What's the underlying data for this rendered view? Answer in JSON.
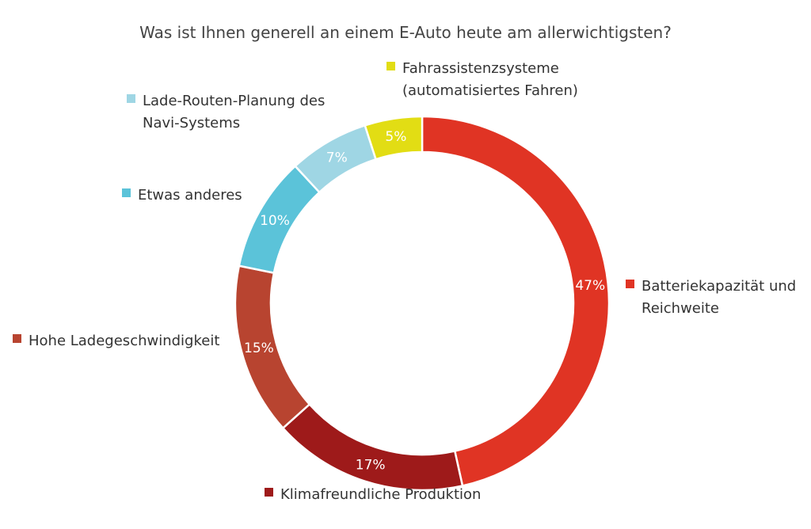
{
  "chart_data": {
    "type": "pie",
    "style": "donut",
    "title": "Was ist Ihnen generell an einem E-Auto heute am allerwichtigsten?",
    "unit": "%",
    "slices": [
      {
        "label": [
          "Batteriekapazität und",
          "Reichweite"
        ],
        "value": 47,
        "value_label": "47%",
        "color": "#e03424"
      },
      {
        "label": [
          "Klimafreundliche Produktion"
        ],
        "value": 17,
        "value_label": "17%",
        "color": "#9e1a1a"
      },
      {
        "label": [
          "Hohe Ladegeschwindigkeit"
        ],
        "value": 15,
        "value_label": "15%",
        "color": "#b84430"
      },
      {
        "label": [
          "Etwas anderes"
        ],
        "value": 10,
        "value_label": "10%",
        "color": "#5bc3d9"
      },
      {
        "label": [
          "Lade-Routen-Planung des",
          "Navi-Systems"
        ],
        "value": 7,
        "value_label": "7%",
        "color": "#9fd6e4"
      },
      {
        "label": [
          "Fahrassistenzsysteme",
          "(automatisiertes Fahren)"
        ],
        "value": 5,
        "value_label": "5%",
        "color": "#e2dd14"
      }
    ]
  }
}
